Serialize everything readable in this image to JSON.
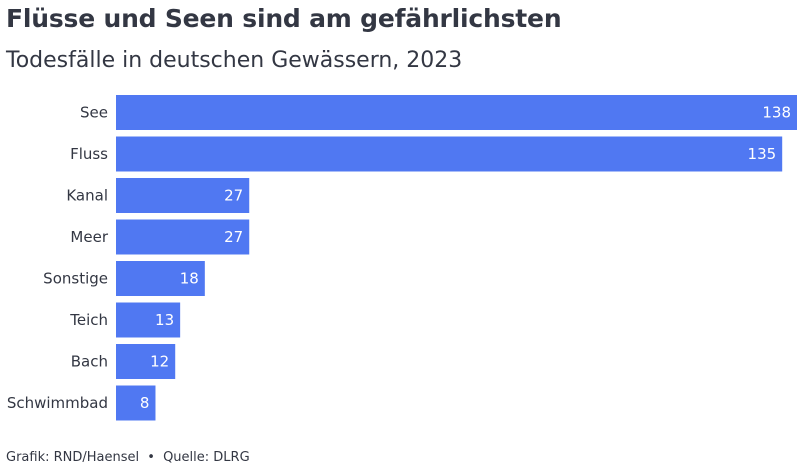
{
  "header": {
    "title": "Flüsse und Seen sind am gefährlichsten",
    "subtitle": "Todesfälle in deutschen Gewässern, 2023"
  },
  "footer": {
    "credit": "Grafik: RND/Haensel",
    "separator": "•",
    "source": "Quelle: DLRG"
  },
  "colors": {
    "bar": "#5078f2",
    "text": "#333743",
    "value_text": "#ffffff"
  },
  "chart_data": {
    "type": "bar",
    "orientation": "horizontal",
    "title": "Flüsse und Seen sind am gefährlichsten",
    "subtitle": "Todesfälle in deutschen Gewässern, 2023",
    "categories": [
      "See",
      "Fluss",
      "Kanal",
      "Meer",
      "Sonstige",
      "Teich",
      "Bach",
      "Schwimmbad"
    ],
    "values": [
      138,
      135,
      27,
      27,
      18,
      13,
      12,
      8
    ],
    "xlim": [
      0,
      138
    ],
    "grid": false,
    "legend": "none",
    "data_labels": "inside-end"
  }
}
